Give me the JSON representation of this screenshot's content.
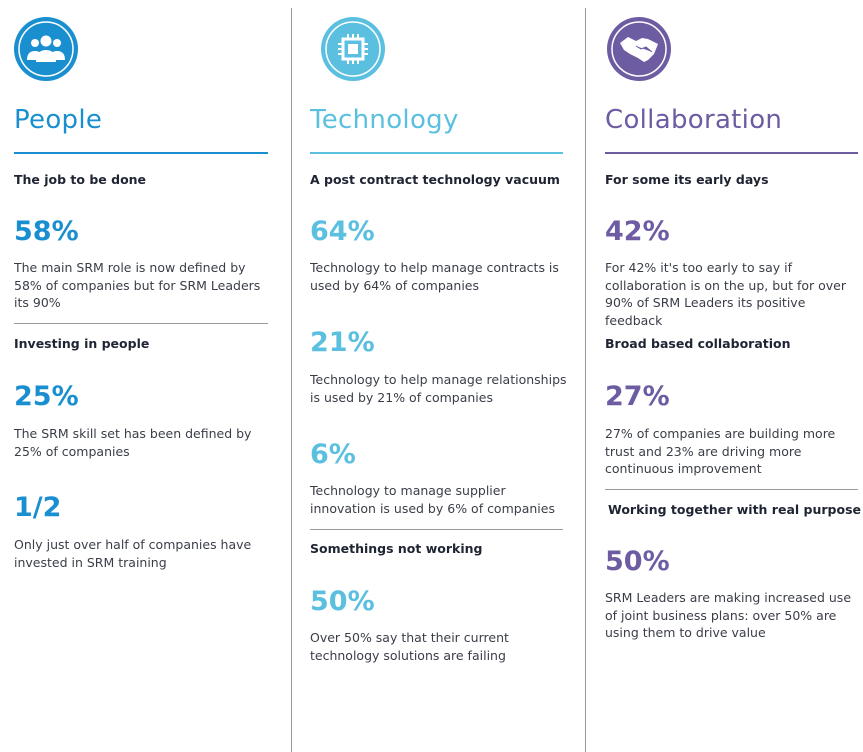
{
  "columns": [
    {
      "title": "People",
      "sections": [
        {
          "heading": "The job to be done",
          "stats": [
            {
              "figure": "58%",
              "text": "The main SRM role is now defined by 58% of companies but for SRM Leaders its 90%"
            }
          ]
        },
        {
          "heading": "Investing in people",
          "stats": [
            {
              "figure": "25%",
              "text": "The SRM skill set has been defined by 25% of companies"
            },
            {
              "figure": "1/2",
              "text": "Only just over half of companies have invested in SRM training"
            }
          ]
        }
      ]
    },
    {
      "title": "Technology",
      "sections": [
        {
          "heading": "A post contract technology vacuum",
          "stats": [
            {
              "figure": "64%",
              "text": "Technology to help manage contracts is used by 64% of companies"
            },
            {
              "figure": "21%",
              "text": "Technology to help manage relationships is used by 21% of companies"
            },
            {
              "figure": "6%",
              "text": "Technology to manage supplier innovation is used by 6% of companies"
            }
          ]
        },
        {
          "heading": "Somethings not working",
          "stats": [
            {
              "figure": "50%",
              "text": "Over 50% say that their current technology solutions are failing"
            }
          ]
        }
      ]
    },
    {
      "title": "Collaboration",
      "sections": [
        {
          "heading": "For some its early days",
          "stats": [
            {
              "figure": "42%",
              "text": "For 42% it's too early to say if collaboration is on the up, but for over 90% of SRM Leaders its positive feedback"
            }
          ]
        },
        {
          "heading": "Broad based collaboration",
          "stats": [
            {
              "figure": "27%",
              "text": "27% of companies are building more trust and 23% are driving more continuous improvement"
            }
          ]
        },
        {
          "heading": "Working together with real purpose",
          "stats": [
            {
              "figure": "50%",
              "text": "SRM Leaders are making increased use of joint business plans: over 50% are using them to drive value"
            }
          ]
        }
      ]
    }
  ]
}
